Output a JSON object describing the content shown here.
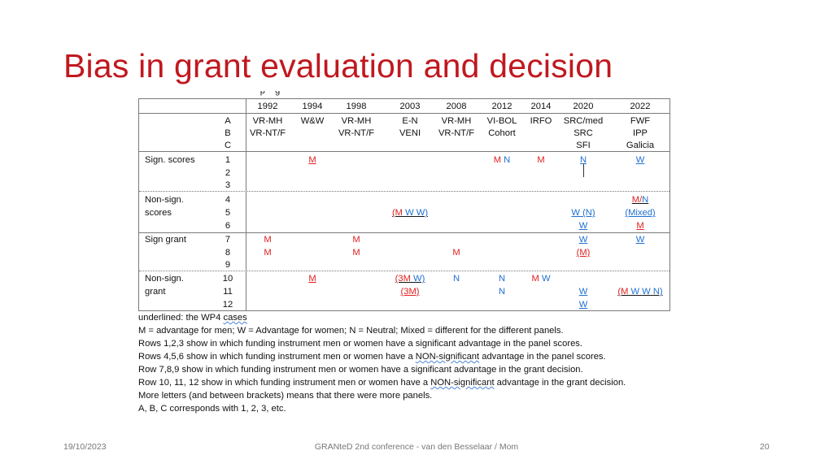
{
  "slide": {
    "title": "Bias in grant evaluation and decision",
    "footer": {
      "date": "19/10/2023",
      "center": "GRANteD 2nd conference - van den Besselaar / Mom",
      "page": "20"
    }
  },
  "table": {
    "years": [
      "1992",
      "1994",
      "1998",
      "2003",
      "2008",
      "2012",
      "2014",
      "2020",
      "2022"
    ],
    "instruments": {
      "a": [
        "VR-MH",
        "W&W",
        "VR-MH",
        "E-N",
        "VR-MH",
        "VI-BOL",
        "IRFO",
        "SRC/med",
        "FWF"
      ],
      "b": [
        "VR-NT/F",
        "",
        "VR-NT/F",
        "VENI",
        "VR-NT/F",
        "Cohort",
        "",
        "SRC",
        "IPP"
      ],
      "c": [
        "",
        "",
        "",
        "",
        "",
        "",
        "",
        "SFI",
        "Galicia"
      ]
    },
    "letters": [
      "A",
      "B",
      "C"
    ],
    "groups": [
      {
        "label_1": "Sign. scores",
        "label_2": "",
        "rows": [
          "1",
          "2",
          "3"
        ]
      },
      {
        "label_1": "Non-sign.",
        "label_2": "scores",
        "rows": [
          "4",
          "5",
          "6"
        ]
      },
      {
        "label_1": "Sign grant",
        "label_2": "",
        "rows": [
          "7",
          "8",
          "9"
        ]
      },
      {
        "label_1": "Non-sign.",
        "label_2": "grant",
        "rows": [
          "10",
          "11",
          "12"
        ]
      }
    ],
    "cells": {
      "r1_1994": "M",
      "r1_2012_m": "M",
      "r1_2012_n": "N",
      "r1_2014": "M",
      "r1_2020": "N",
      "r1_2022": "W",
      "r4_2022_m": "M",
      "r4_2022_sep": "/",
      "r4_2022_n": "N",
      "r5_2003_open": "(M",
      "r5_2003_w1": "W",
      "r5_2003_w2": "W)",
      "r5_2020": "W (N)",
      "r5_2022": "(Mixed)",
      "r6_2020": "W",
      "r6_2022": "M",
      "r7_1992": "M",
      "r7_1998": "M",
      "r7_2020": "W",
      "r7_2022": "W",
      "r8_1992": "M",
      "r8_1998": "M",
      "r8_2008": "M",
      "r8_2020": "(M)",
      "r10_1994": "M",
      "r10_2003_m": "(3M",
      "r10_2003_w": "W)",
      "r10_2008": "N",
      "r10_2012": "N",
      "r10_2014_m": "M",
      "r10_2014_w": "W",
      "r11_2003": "(3M)",
      "r11_2012": "N",
      "r11_2020": "W",
      "r11_2022_m": "(M",
      "r11_2022_w1": "W",
      "r11_2022_w2": "W",
      "r11_2022_n": "N)",
      "r12_2020": "W"
    }
  },
  "notes": {
    "line1_pre": "underlined: the WP4 ",
    "line1_cases": "cases",
    "line2": "M = advantage for men; W = Advantage for women; N = Neutral; Mixed = different for the different panels.",
    "line3": "Rows 1,2,3 show in which funding instrument men or women have a significant advantage in the panel scores.",
    "line4_pre": "Rows 4,5,6 show in which funding instrument men or women have a ",
    "line4_em": "NON-significant",
    "line4_post": " advantage in the panel scores.",
    "line5": "Row 7,8,9 show in which funding instrument men or women have a significant advantage in the grant decision.",
    "line6_pre": "Row 10, 11, 12 show in which funding instrument men or women have a ",
    "line6_em": "NON-significant",
    "line6_post": " advantage in the grant decision.",
    "line7": "More letters (and between brackets) means that there were more panels.",
    "line8": "A, B, C corresponds with 1, 2, 3, etc."
  },
  "colors": {
    "title": "#c0181f",
    "men": "#e02020",
    "women": "#1f6fd0"
  }
}
